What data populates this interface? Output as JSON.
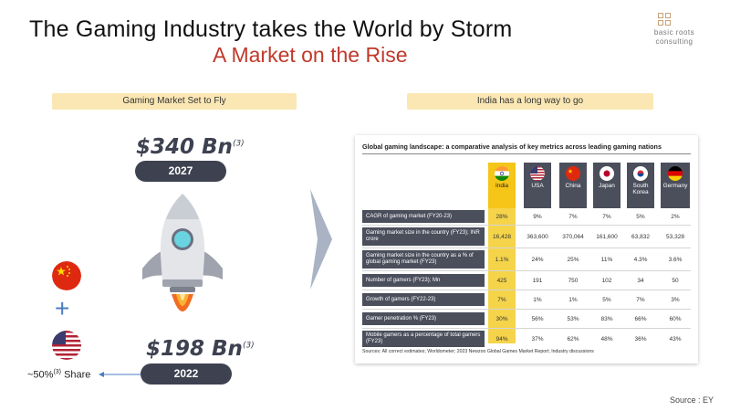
{
  "header": {
    "title": "The Gaming Industry takes the World by Storm",
    "subtitle": "A Market on the Rise"
  },
  "logo": {
    "line1": "basic roots",
    "line2": "consulting"
  },
  "left_panel": {
    "label": "Gaming Market Set to Fly",
    "value_2027": "$340 Bn",
    "value_2027_sup": "(3)",
    "year_2027": "2027",
    "value_2022": "$198 Bn",
    "value_2022_sup": "(3)",
    "year_2022": "2022",
    "share_prefix": "~50%",
    "share_sup": "(3)",
    "share_suffix": " Share",
    "plus": "+"
  },
  "right_panel": {
    "label": "India has a long way to go"
  },
  "table": {
    "title": "Global gaming landscape: a comparative analysis of key metrics across leading gaming nations",
    "columns": [
      "India",
      "USA",
      "China",
      "Japan",
      "South Korea",
      "Germany"
    ],
    "rows": [
      {
        "label": "CAGR of gaming market (FY20-23)",
        "values": [
          "28%",
          "9%",
          "7%",
          "7%",
          "5%",
          "2%"
        ]
      },
      {
        "label": "Gaming market size in the country (FY23); INR crore",
        "values": [
          "16,428",
          "363,600",
          "370,064",
          "161,600",
          "63,832",
          "53,328"
        ]
      },
      {
        "label": "Gaming market size in the country as a % of global gaming market (FY23)",
        "values": [
          "1.1%",
          "24%",
          "25%",
          "11%",
          "4.3%",
          "3.6%"
        ]
      },
      {
        "label": "Number of gamers (FY23); Mn",
        "values": [
          "425",
          "191",
          "750",
          "102",
          "34",
          "50"
        ]
      },
      {
        "label": "Growth of gamers (FY22-23)",
        "values": [
          "7%",
          "1%",
          "1%",
          "5%",
          "7%",
          "3%"
        ]
      },
      {
        "label": "Gamer penetration % (FY23)",
        "values": [
          "30%",
          "56%",
          "53%",
          "83%",
          "66%",
          "60%"
        ]
      },
      {
        "label": "Mobile gamers as a percentage of total gamers (FY23)",
        "values": [
          "94%",
          "37%",
          "62%",
          "48%",
          "36%",
          "43%"
        ]
      }
    ],
    "source": "Sources: All correct estimates; Worldometer; 2023 Newzoo Global Games Market Report; Industry discussions"
  },
  "footer": {
    "source": "Source : EY"
  },
  "colors": {
    "accent_red": "#c0392b",
    "pill_bg": "#fbe7b4",
    "dark": "#3d4150",
    "india_highlight": "#f5d44a",
    "arrow": "#a9b3c4"
  }
}
